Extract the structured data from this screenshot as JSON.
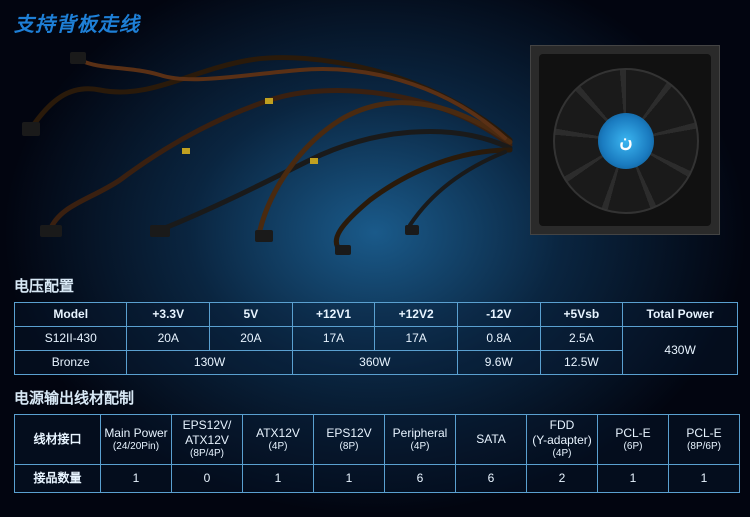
{
  "title": "支持背板走线",
  "section1_title": "电压配置",
  "section2_title": "电源输出线材配制",
  "table1": {
    "header": [
      "Model",
      "+3.3V",
      "5V",
      "+12V1",
      "+12V2",
      "-12V",
      "+5Vsb",
      "Total Power"
    ],
    "model_lines": [
      "S12II-430",
      "Bronze"
    ],
    "row_amps": [
      "20A",
      "20A",
      "17A",
      "17A",
      "0.8A",
      "2.5A"
    ],
    "watt_a": "130W",
    "watt_b": "360W",
    "watt_c": "9.6W",
    "watt_d": "12.5W",
    "total": "430W"
  },
  "table2": {
    "row1_label": "线材接口",
    "row2_label": "接品数量",
    "headers": [
      {
        "main": "Main Power",
        "sub": "(24/20Pin)"
      },
      {
        "main": "EPS12V/\nATX12V",
        "sub": "(8P/4P)"
      },
      {
        "main": "ATX12V",
        "sub": "(4P)"
      },
      {
        "main": "EPS12V",
        "sub": "(8P)"
      },
      {
        "main": "Peripheral",
        "sub": "(4P)"
      },
      {
        "main": "SATA",
        "sub": ""
      },
      {
        "main": "FDD\n(Y-adapter)",
        "sub": "(4P)"
      },
      {
        "main": "PCL-E",
        "sub": "(6P)"
      },
      {
        "main": "PCL-E",
        "sub": "(8P/6P)"
      }
    ],
    "counts": [
      "1",
      "0",
      "1",
      "1",
      "6",
      "6",
      "2",
      "1",
      "1"
    ]
  },
  "colors": {
    "border": "#5aa0d0",
    "text": "#e8f4ff",
    "title": "#1e7fd6"
  }
}
